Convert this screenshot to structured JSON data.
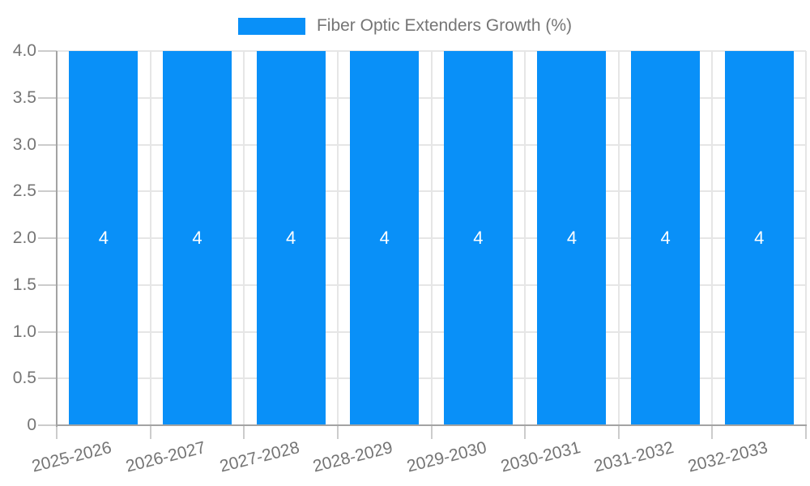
{
  "chart_data": {
    "type": "bar",
    "title": "Fiber Optic Extenders Growth (%)",
    "legend": {
      "entries": [
        "Fiber Optic Extenders Growth (%)"
      ],
      "position": "top-center"
    },
    "categories": [
      "2025-2026",
      "2026-2027",
      "2027-2028",
      "2028-2029",
      "2029-2030",
      "2030-2031",
      "2031-2032",
      "2032-2033"
    ],
    "values": [
      4,
      4,
      4,
      4,
      4,
      4,
      4,
      4
    ],
    "bar_labels": [
      "4",
      "4",
      "4",
      "4",
      "4",
      "4",
      "4",
      "4"
    ],
    "xlabel": "",
    "ylabel": "",
    "ylim": [
      0,
      4
    ],
    "ytick_values": [
      4,
      3.5,
      3,
      2.5,
      2,
      1.5,
      1,
      0.5,
      0
    ],
    "ytick_labels": [
      "4.0",
      "3.5",
      "3.0",
      "2.5",
      "2.0",
      "1.5",
      "1.0",
      "0.5",
      "0"
    ],
    "grid": "on",
    "colors": {
      "bar": "#0990f8",
      "axis": "#a3a3a3",
      "grid": "#e6e6e6",
      "tick": "#cccccc",
      "text": "#757575",
      "bar_label": "#ffffff",
      "background": "#ffffff"
    }
  }
}
